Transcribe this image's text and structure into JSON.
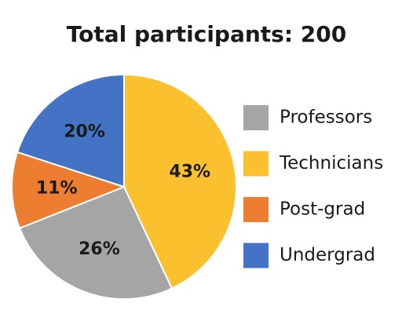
{
  "chart_data": {
    "type": "pie",
    "title": "Total participants: 200",
    "categories": [
      "Technicians",
      "Professors",
      "Post-grad",
      "Undergrad"
    ],
    "values": [
      43,
      26,
      11,
      20
    ],
    "value_labels": [
      "43%",
      "26%",
      "11%",
      "20%"
    ],
    "colors": [
      "#fbc02d",
      "#a5a5a5",
      "#ed7d31",
      "#4472c4"
    ]
  }
}
